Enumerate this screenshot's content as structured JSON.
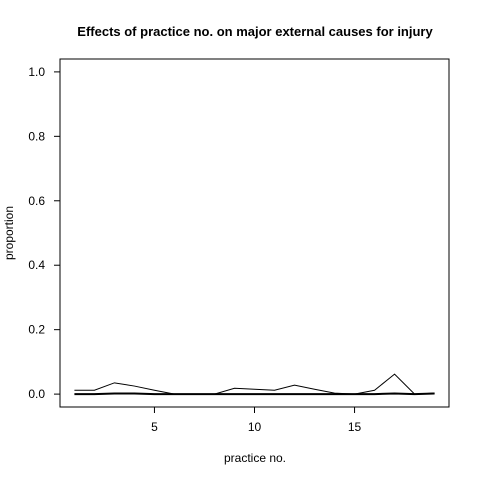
{
  "chart_data": {
    "type": "line",
    "title": "Effects of practice no. on major external causes for injury",
    "xlabel": "practice no.",
    "ylabel": "proportion",
    "xlim": [
      0.28,
      19.72
    ],
    "ylim": [
      -0.04,
      1.04
    ],
    "x_ticks": [
      5,
      10,
      15
    ],
    "y_ticks": [
      0.0,
      0.2,
      0.4,
      0.6,
      0.8,
      1.0
    ],
    "y_tick_labels": [
      "0.0",
      "0.2",
      "0.4",
      "0.6",
      "0.8",
      "1.0"
    ],
    "grid": false,
    "x": [
      1,
      2,
      3,
      4,
      5,
      6,
      7,
      8,
      9,
      10,
      11,
      12,
      13,
      14,
      15,
      16,
      17,
      18,
      19
    ],
    "series": [
      {
        "values": [
          0.012,
          0.012,
          0.035,
          0.025,
          0.012,
          0.0,
          0.0,
          0.0,
          0.018,
          0.015,
          0.012,
          0.028,
          0.015,
          0.003,
          0.0,
          0.012,
          0.062,
          0.0,
          0.003
        ],
        "line_width": 1,
        "color": "#000000"
      },
      {
        "values": [
          0.0,
          0.0,
          0.002,
          0.002,
          0.0,
          0.0,
          0.0,
          0.0,
          0.0,
          0.0,
          0.0,
          0.0,
          0.0,
          0.0,
          0.0,
          0.0,
          0.002,
          0.0,
          0.002
        ],
        "line_width": 2,
        "color": "#000000"
      }
    ]
  }
}
